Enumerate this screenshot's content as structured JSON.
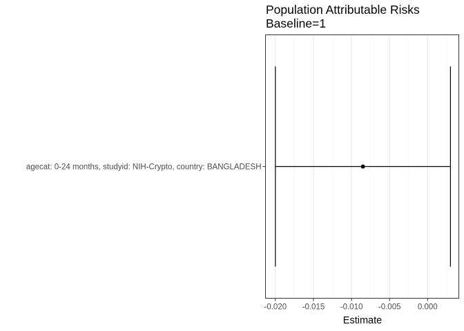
{
  "chart_data": {
    "type": "errorbar",
    "title": "Population Attributable Risks",
    "subtitle": "Baseline=1",
    "xlabel": "Estimate",
    "ylabel": "",
    "xlim": [
      -0.0213,
      0.0041
    ],
    "x_ticks": [
      -0.02,
      -0.015,
      -0.01,
      -0.005,
      0.0
    ],
    "x_tick_labels": [
      "-0.020",
      "-0.015",
      "-0.010",
      "-0.005",
      "0.000"
    ],
    "grid": true,
    "categories": [
      "agecat: 0-24 months, studyid: NIH-Crypto, country: BANGLADESH"
    ],
    "points": [
      {
        "category": "agecat: 0-24 months, studyid: NIH-Crypto, country: BANGLADESH",
        "estimate": -0.0085,
        "lower": -0.02,
        "upper": 0.003
      }
    ],
    "colors": {
      "panel_border": "#333333",
      "grid_major": "#ebebeb",
      "grid_minor": "#f5f5f5",
      "mark": "#000000"
    }
  }
}
